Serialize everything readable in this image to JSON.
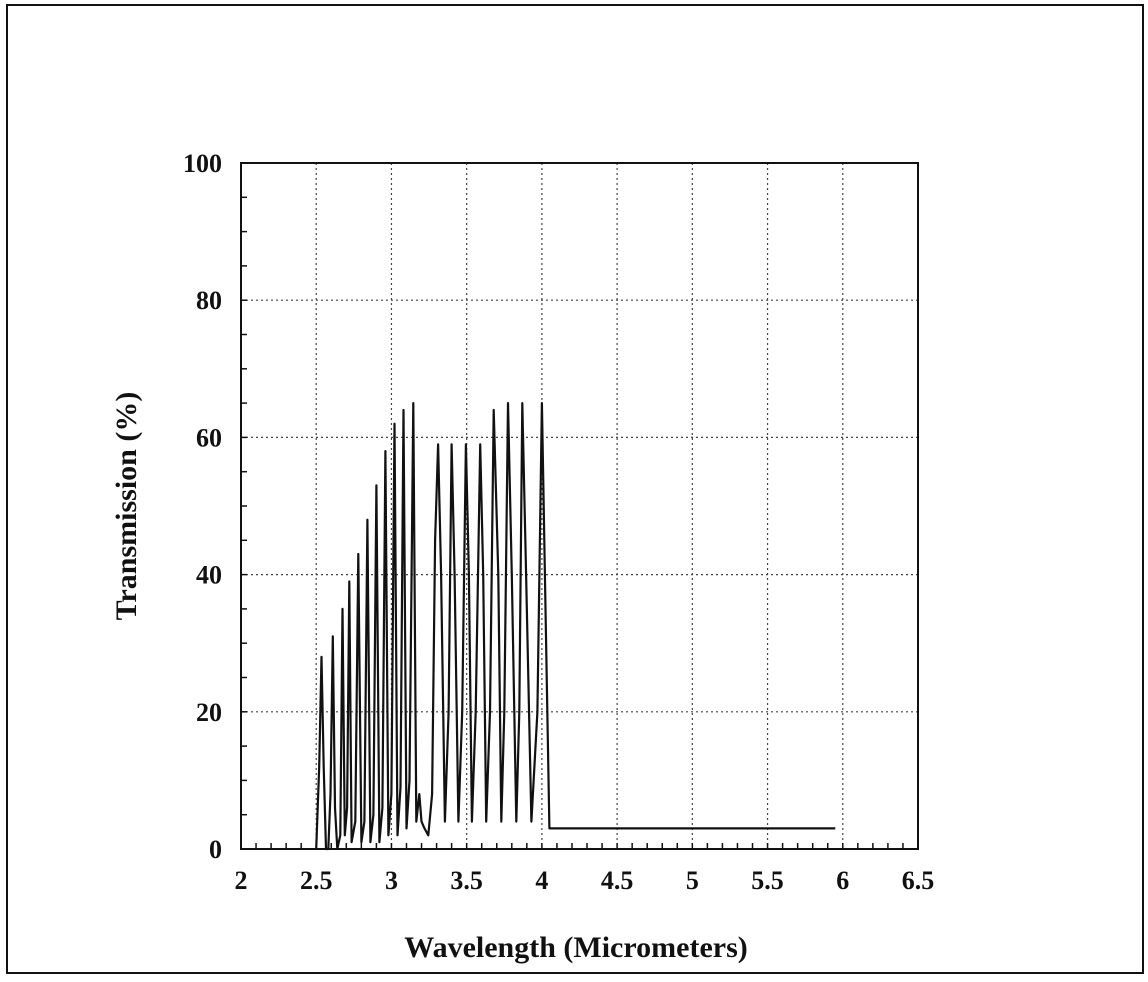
{
  "chart_data": {
    "type": "line",
    "title": "",
    "xlabel": "Wavelength (Micrometers)",
    "ylabel": "Transmission (%)",
    "xlim": [
      2,
      6.5
    ],
    "ylim": [
      0,
      100
    ],
    "x_ticks": [
      "2",
      "2.5",
      "3",
      "3.5",
      "4",
      "4.5",
      "5",
      "5.5",
      "6",
      "6.5"
    ],
    "y_ticks": [
      "0",
      "20",
      "40",
      "60",
      "80",
      "100"
    ],
    "grid": true,
    "legend": "none",
    "line_color": "#111111",
    "series": [
      {
        "x": [
          2.5,
          2.52,
          2.535,
          2.55,
          2.565,
          2.58,
          2.595,
          2.61,
          2.625,
          2.64,
          2.66,
          2.675,
          2.69,
          2.705,
          2.72,
          2.735,
          2.76,
          2.78,
          2.8,
          2.82,
          2.84,
          2.86,
          2.88,
          2.9,
          2.92,
          2.94,
          2.96,
          2.98,
          3.0,
          3.02,
          3.04,
          3.06,
          3.08,
          3.1,
          3.12,
          3.145,
          3.165,
          3.185,
          3.2,
          3.22,
          3.245,
          3.27,
          3.29,
          3.31,
          3.33,
          3.355,
          3.38,
          3.4,
          3.42,
          3.445,
          3.47,
          3.495,
          3.515,
          3.535,
          3.56,
          3.59,
          3.61,
          3.63,
          3.655,
          3.68,
          3.71,
          3.73,
          3.75,
          3.775,
          3.8,
          3.83,
          3.85,
          3.87,
          3.895,
          3.93,
          3.97,
          4.0,
          4.02,
          4.05,
          4.1,
          4.13,
          4.15,
          4.17,
          4.2,
          4.25,
          4.28,
          4.31,
          4.34,
          4.36,
          4.38,
          4.42,
          4.47,
          4.5,
          4.54,
          4.57,
          4.59,
          4.62,
          4.65,
          4.7,
          4.73,
          4.77,
          4.8,
          4.82,
          4.85,
          4.9,
          4.93,
          4.96,
          4.99,
          5.02,
          5.04,
          5.08,
          5.13,
          5.16,
          5.2,
          5.24,
          5.27,
          5.29,
          5.32,
          5.37,
          5.41,
          5.45,
          5.49,
          5.52,
          5.55,
          5.58,
          5.62,
          5.66,
          5.7,
          5.74,
          5.77,
          5.8,
          5.83,
          5.87,
          5.91,
          5.95
        ],
        "y": [
          0,
          12,
          28,
          12,
          0,
          0,
          8,
          31,
          6,
          0,
          2,
          35,
          2,
          6,
          39,
          1,
          4,
          43,
          1,
          4,
          48,
          1,
          5,
          53,
          1,
          6,
          58,
          2,
          8,
          62,
          2,
          9,
          64,
          3,
          10,
          65,
          4,
          8,
          4,
          3,
          2,
          8,
          45,
          59,
          40,
          4,
          20,
          59,
          40,
          4,
          20,
          59,
          40,
          4,
          20,
          59,
          40,
          4,
          20,
          64,
          40,
          4,
          20,
          65,
          40,
          4,
          20,
          65,
          40,
          4,
          20,
          65,
          40,
          3,
          3,
          3,
          3,
          3,
          3,
          3,
          3,
          3,
          3,
          3,
          3,
          3,
          3,
          3,
          3,
          3,
          3,
          3,
          3,
          3,
          3,
          3,
          3,
          3,
          3,
          3,
          3,
          3,
          3,
          3,
          3,
          3,
          3,
          3,
          3,
          3,
          3,
          3,
          3,
          3,
          3,
          3,
          3,
          3,
          3,
          3,
          3,
          3,
          3,
          3,
          3,
          3,
          3,
          3,
          3,
          3
        ]
      }
    ]
  }
}
